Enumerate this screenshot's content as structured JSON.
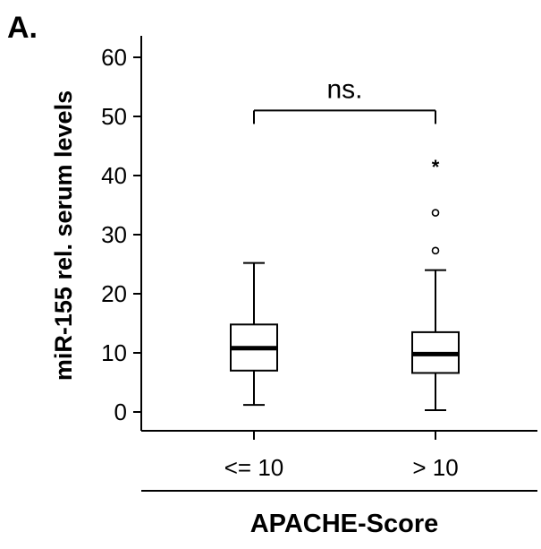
{
  "chart_data": {
    "type": "box",
    "panel_label": "A.",
    "title": "",
    "ylabel": "miR-155 rel. serum levels",
    "xlabel": "APACHE-Score",
    "ylim": [
      0,
      60
    ],
    "yticks": [
      "0",
      "10",
      "20",
      "30",
      "40",
      "50",
      "60"
    ],
    "categories": [
      "<= 10",
      "> 10"
    ],
    "boxes": [
      {
        "category": "<= 10",
        "whisker_low": 1.2,
        "q1": 7.0,
        "median": 10.8,
        "q3": 14.8,
        "whisker_high": 25.2,
        "outliers": [],
        "extremes": []
      },
      {
        "category": "> 10",
        "whisker_low": 0.3,
        "q1": 6.6,
        "median": 9.8,
        "q3": 13.5,
        "whisker_high": 24.0,
        "outliers": [
          27.3,
          33.7
        ],
        "extremes": [
          41.7
        ]
      }
    ],
    "annotation": {
      "text": "ns.",
      "between": [
        "<= 10",
        "> 10"
      ],
      "y": 51.0
    },
    "grid": false,
    "legend": "none"
  }
}
